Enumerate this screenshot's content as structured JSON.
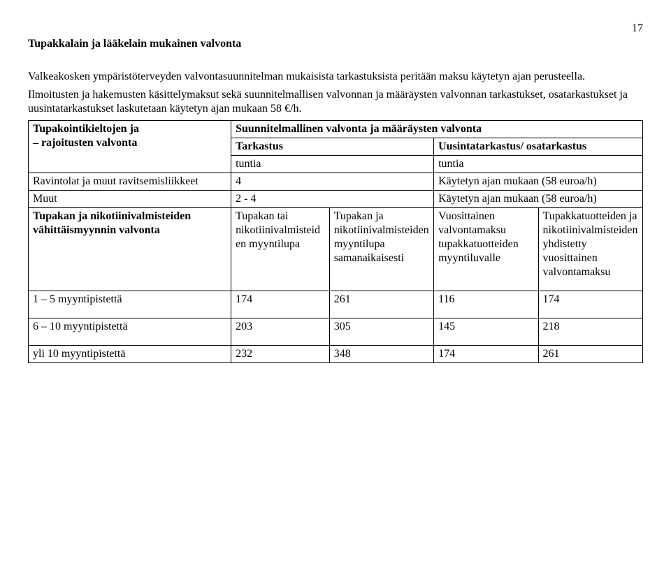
{
  "page_number": "17",
  "title": "Tupakkalain ja lääkelain mukainen valvonta",
  "para1": "Valkeakosken ympäristöterveyden valvontasuunnitelman mukaisista tarkastuksista peritään maksu käytetyn ajan perusteella.",
  "para2": "Ilmoitusten ja hakemusten käsittelymaksut sekä suunnitelmallisen valvonnan ja määräysten valvonnan tarkastukset, osatarkastukset ja uusintatarkastukset laskutetaan käytetyn ajan mukaan 58 €/h.",
  "h1a": "Tupakointikieltojen ja",
  "h1b": "– rajoitusten valvonta",
  "h2": "Suunnitelmallinen valvonta ja määräysten valvonta",
  "h3": "Tarkastus",
  "h4": "Uusintatarkastus/ osatarkastus",
  "h5": "tuntia",
  "h6": "tuntia",
  "r1c1": "Ravintolat ja muut ravitsemisliikkeet",
  "r1c2": "4",
  "r1c3": "Käytetyn ajan mukaan (58 euroa/h)",
  "r2c1": "Muut",
  "r2c2": "2 - 4",
  "r2c3": "Käytetyn ajan mukaan (58 euroa/h)",
  "r3c1": "Tupakan ja nikotiinivalmisteiden vähittäismyynnin valvonta",
  "r3c2": "Tupakan tai nikotiinivalmisteiden myyntilupa",
  "r3c3": "Tupakan ja nikotiinivalmisteiden myyntilupa samanaikaisesti",
  "r3c4": "Vuosittainen valvontamaksu tupakkatuotteiden myyntiluvalle",
  "r3c5": "Tupakkatuotteiden ja nikotiinivalmisteiden yhdistetty vuosittainen valvontamaksu",
  "r4c1": "1 – 5 myyntipistettä",
  "r4c2": "174",
  "r4c3": "261",
  "r4c4": "116",
  "r4c5": "174",
  "r5c1": "6 – 10 myyntipistettä",
  "r5c2": "203",
  "r5c3": "305",
  "r5c4": "145",
  "r5c5": "218",
  "r6c1": "yli 10 myyntipistettä",
  "r6c2": "232",
  "r6c3": "348",
  "r6c4": "174",
  "r6c5": "261"
}
